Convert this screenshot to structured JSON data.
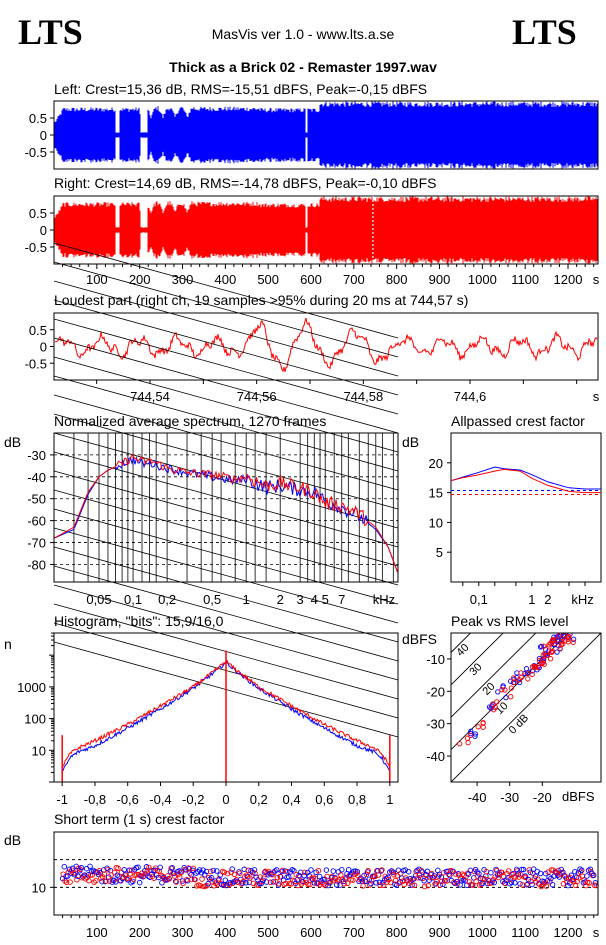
{
  "header": {
    "logo_left": "LTS",
    "logo_right": "LTS",
    "app": "MasVis ver 1.0 - www.lts.a.se",
    "file": "Thick as a Brick 02 - Remaster 1997.wav"
  },
  "colors": {
    "left": "#0000ff",
    "right": "#ff0000",
    "grid": "#000000"
  },
  "chart_data": [
    {
      "id": "left",
      "type": "line",
      "title": "Left: Crest=15,36 dB, RMS=-15,51 dBFS, Peak=-0,15 dBFS",
      "ylim": [
        -1,
        1
      ],
      "yticks": [
        "0.5",
        "0",
        "-0.5"
      ],
      "xlim": [
        0,
        1270
      ]
    },
    {
      "id": "right",
      "type": "line",
      "title": "Right: Crest=14,69 dB, RMS=-14,78 dBFS, Peak=-0,10 dBFS",
      "ylim": [
        -1,
        1
      ],
      "yticks": [
        "0.5",
        "0",
        "-0.5"
      ],
      "xlim": [
        0,
        1270
      ],
      "xticks": [
        "100",
        "200",
        "300",
        "400",
        "500",
        "600",
        "700",
        "800",
        "900",
        "1000",
        "1100",
        "1200"
      ],
      "xunit": "s",
      "marker_x": 744.57
    },
    {
      "id": "loudest",
      "type": "line",
      "title": "Loudest part (right ch, 19 samples >95% during 20 ms at 744,57 s)",
      "ylim": [
        -1,
        1
      ],
      "yticks": [
        "0.5",
        "0",
        "-0.5"
      ],
      "xlim": [
        744.522,
        744.624
      ],
      "xticks": [
        "744,54",
        "744,56",
        "744,58",
        "744,6"
      ],
      "xunit": "s"
    },
    {
      "id": "spectrum",
      "type": "line",
      "title": "Normalized average spectrum, 1270 frames",
      "ylabel": "dB",
      "yticks": [
        "-30",
        "-40",
        "-50",
        "-60",
        "-70",
        "-80"
      ],
      "ylim": [
        -88,
        -20
      ],
      "xscale": "log",
      "xlim": [
        0.02,
        22
      ],
      "xticks": [
        "0,05",
        "0,1",
        "0,2",
        "0,5",
        "1",
        "2",
        "3",
        "4",
        "5",
        "7"
      ],
      "xunit": "kHz",
      "series": [
        {
          "color": "#0000ff",
          "x": [
            0.02,
            0.03,
            0.04,
            0.05,
            0.06,
            0.08,
            0.1,
            0.12,
            0.15,
            0.2,
            0.3,
            0.5,
            0.8,
            1,
            1.5,
            2,
            3,
            4,
            5,
            7,
            10,
            14,
            18,
            22
          ],
          "y": [
            -68,
            -64,
            -48,
            -40,
            -37,
            -34,
            -32,
            -34,
            -34,
            -36,
            -38,
            -40,
            -42,
            -41,
            -45,
            -44,
            -46,
            -47,
            -51,
            -54,
            -58,
            -64,
            -72,
            -84
          ]
        },
        {
          "color": "#ff0000",
          "x": [
            0.02,
            0.03,
            0.04,
            0.05,
            0.06,
            0.08,
            0.1,
            0.12,
            0.15,
            0.2,
            0.3,
            0.5,
            0.8,
            1,
            1.5,
            2,
            3,
            4,
            5,
            7,
            10,
            14,
            18,
            22
          ],
          "y": [
            -68,
            -63,
            -47,
            -40,
            -37,
            -34,
            -31,
            -33,
            -33,
            -36,
            -38,
            -39,
            -41,
            -40,
            -44,
            -43,
            -45,
            -47,
            -52,
            -53,
            -57,
            -63,
            -72,
            -84
          ]
        }
      ]
    },
    {
      "id": "allpass",
      "type": "line",
      "title": "Allpassed crest factor",
      "ylabel": "dB",
      "yticks": [
        "20",
        "15",
        "10",
        "5"
      ],
      "ylim": [
        0,
        25
      ],
      "xscale": "log",
      "xlim": [
        0.03,
        20
      ],
      "xticks": [
        "0,1",
        "1",
        "2",
        "kHz"
      ],
      "ref_left": 15.36,
      "ref_right": 14.69,
      "series": [
        {
          "color": "#0000ff",
          "x": [
            0.03,
            0.05,
            0.1,
            0.2,
            0.3,
            0.6,
            1,
            2,
            5,
            10,
            20
          ],
          "y": [
            17,
            17.6,
            18.4,
            19.3,
            19,
            18.8,
            18,
            16.8,
            15.8,
            15.6,
            15.6
          ]
        },
        {
          "color": "#ff0000",
          "x": [
            0.03,
            0.05,
            0.1,
            0.2,
            0.3,
            0.6,
            1,
            2,
            5,
            10,
            20
          ],
          "y": [
            17,
            17.5,
            18,
            18.6,
            18.9,
            18.6,
            17.4,
            16.2,
            15.2,
            15,
            15
          ]
        }
      ]
    },
    {
      "id": "histogram",
      "type": "line",
      "title": "Histogram, \"bits\": 15,9/16,0",
      "ylabel": "n",
      "yscale": "log",
      "ylim": [
        1,
        50000
      ],
      "yticks": [
        "1000",
        "100",
        "10"
      ],
      "xlim": [
        -1.05,
        1.05
      ],
      "xticks": [
        "-1",
        "-0,8",
        "-0,6",
        "-0,4",
        "-0,2",
        "0",
        "0,2",
        "0,4",
        "0,6",
        "0,8",
        "1"
      ],
      "series": [
        {
          "color": "#0000ff",
          "x": [
            -1,
            -0.95,
            -0.9,
            -0.8,
            -0.6,
            -0.4,
            -0.2,
            -0.05,
            0,
            0.05,
            0.2,
            0.4,
            0.6,
            0.8,
            0.9,
            0.95,
            1
          ],
          "y": [
            2,
            6,
            9,
            14,
            50,
            200,
            900,
            3500,
            6000,
            3500,
            900,
            200,
            50,
            14,
            9,
            6,
            2
          ]
        },
        {
          "color": "#ff0000",
          "x": [
            -1,
            -0.95,
            -0.9,
            -0.8,
            -0.6,
            -0.4,
            -0.2,
            -0.05,
            0,
            0.05,
            0.2,
            0.4,
            0.6,
            0.8,
            0.9,
            0.95,
            1
          ],
          "y": [
            3,
            8,
            12,
            20,
            65,
            250,
            1000,
            3800,
            6500,
            3800,
            1000,
            250,
            65,
            20,
            12,
            8,
            3
          ]
        }
      ]
    },
    {
      "id": "peakrms",
      "type": "scatter",
      "title": "Peak vs RMS level",
      "ylabel": "dBFS",
      "xlabel": "dBFS",
      "ylim": [
        -48,
        -2
      ],
      "xlim": [
        -48,
        -2
      ],
      "yticks": [
        "-10",
        "-20",
        "-30",
        "-40"
      ],
      "xticks": [
        "-40",
        "-30",
        "-20"
      ],
      "diagonals": [
        "40",
        "30",
        "20",
        "10",
        "0 dB"
      ],
      "series": [
        {
          "color": "#0000ff",
          "x": [
            -42,
            -36,
            -32,
            -28,
            -26,
            -24,
            -22,
            -20,
            -19,
            -18,
            -17,
            -16,
            -15,
            -14,
            -13,
            -12
          ],
          "y": [
            -32,
            -26,
            -20,
            -18,
            -15,
            -14,
            -12,
            -9,
            -8,
            -7,
            -6,
            -5,
            -4,
            -4,
            -3,
            -3
          ]
        },
        {
          "color": "#ff0000",
          "x": [
            -44,
            -40,
            -35,
            -31,
            -27,
            -25,
            -23,
            -21,
            -20,
            -18,
            -17,
            -16,
            -15,
            -14,
            -13,
            -12
          ],
          "y": [
            -35,
            -30,
            -24,
            -21,
            -17,
            -15,
            -13,
            -11,
            -10,
            -8,
            -7,
            -6,
            -5,
            -4,
            -3,
            -3
          ]
        }
      ]
    },
    {
      "id": "shortcrest",
      "type": "scatter",
      "title": "Short term (1 s) crest factor",
      "ylabel": "dB",
      "ylim": [
        0,
        30
      ],
      "yticks": [
        "10"
      ],
      "ref_lines": [
        20,
        10
      ],
      "xlim": [
        0,
        1270
      ],
      "xticks": [
        "100",
        "200",
        "300",
        "400",
        "500",
        "600",
        "700",
        "800",
        "900",
        "1000",
        "1100",
        "1200"
      ],
      "xunit": "s"
    }
  ]
}
